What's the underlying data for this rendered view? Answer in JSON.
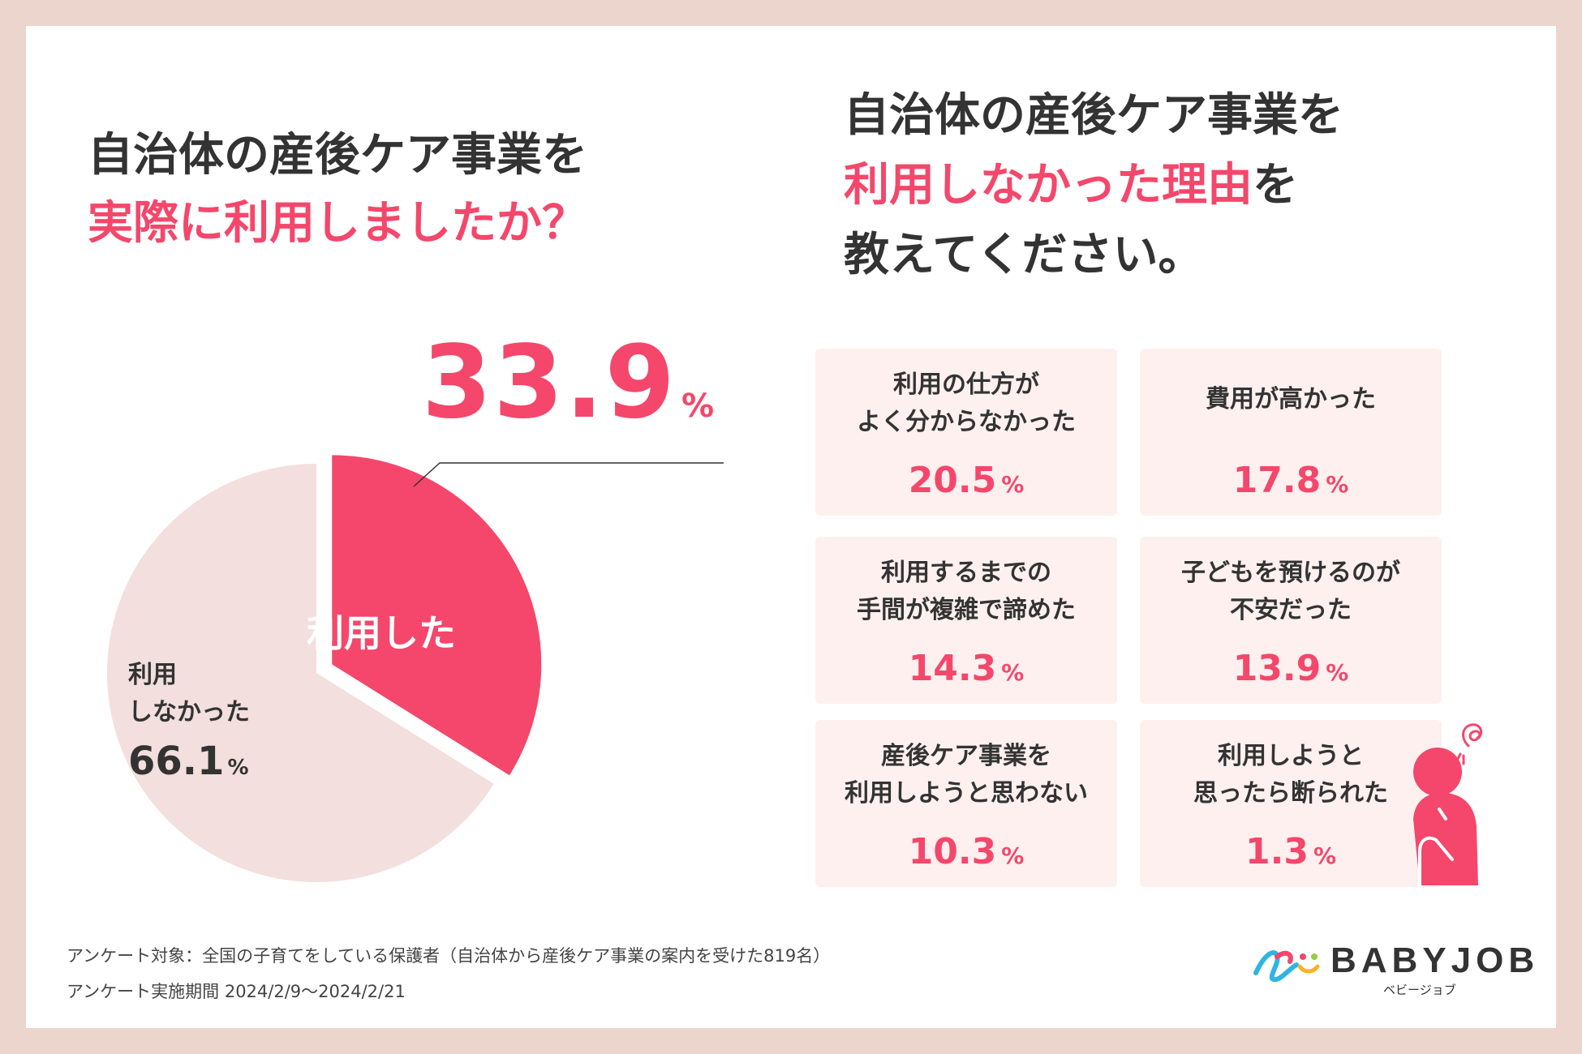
{
  "left_title": {
    "line1": "自治体の産後ケア事業を",
    "line2": "実際に利用しましたか？"
  },
  "right_title": {
    "line1": "自治体の産後ケア事業を",
    "line2_pink": "利用しなかった理由",
    "line2_tail": "を",
    "line3": "教えてください。"
  },
  "colors": {
    "accent": "#f4476b",
    "pie_rest": "#f2dfde",
    "box_bg": "#fdf0ef",
    "frame": "#ecd5cd"
  },
  "pie": {
    "used_label": "利用した",
    "used_value": "33.9",
    "unused_label_line1": "利用",
    "unused_label_line2": "しなかった",
    "unused_value": "66.1",
    "unit": "%"
  },
  "chart_data": [
    {
      "type": "pie",
      "title": "自治体の産後ケア事業を実際に利用しましたか？",
      "labels": [
        "利用した",
        "利用しなかった"
      ],
      "values": [
        33.9,
        66.1
      ],
      "unit": "%"
    },
    {
      "type": "table",
      "title": "自治体の産後ケア事業を利用しなかった理由を教えてください。",
      "categories": [
        "利用の仕方がよく分からなかった",
        "費用が高かった",
        "利用するまでの手間が複雑で諦めた",
        "子どもを預けるのが不安だった",
        "産後ケア事業を利用しようと思わない",
        "利用しようと思ったら断られた"
      ],
      "values": [
        20.5,
        17.8,
        14.3,
        13.9,
        10.3,
        1.3
      ],
      "unit": "%"
    }
  ],
  "reasons": [
    {
      "text": "利用の仕方が\nよく分からなかった",
      "value": "20.5",
      "unit": "%"
    },
    {
      "text": "費用が高かった",
      "value": "17.8",
      "unit": "%"
    },
    {
      "text": "利用するまでの\n手間が複雑で諦めた",
      "value": "14.3",
      "unit": "%"
    },
    {
      "text": "子どもを預けるのが\n不安だった",
      "value": "13.9",
      "unit": "%"
    },
    {
      "text": "産後ケア事業を\n利用しようと思わない",
      "value": "10.3",
      "unit": "%"
    },
    {
      "text": "利用しようと\n思ったら断られた",
      "value": "1.3",
      "unit": "%"
    }
  ],
  "footer": {
    "line1": "アンケート対象：全国の子育てをしている保護者（自治体から産後ケア事業の案内を受けた819名）",
    "line2": "アンケート実施期間 2024/2/9〜2024/2/21"
  },
  "logo": {
    "word": "BABYJOB",
    "kana": "ベビージョブ"
  },
  "icons": [
    "pie-chart",
    "worried-person-icon",
    "babyjob-logo-icon"
  ]
}
